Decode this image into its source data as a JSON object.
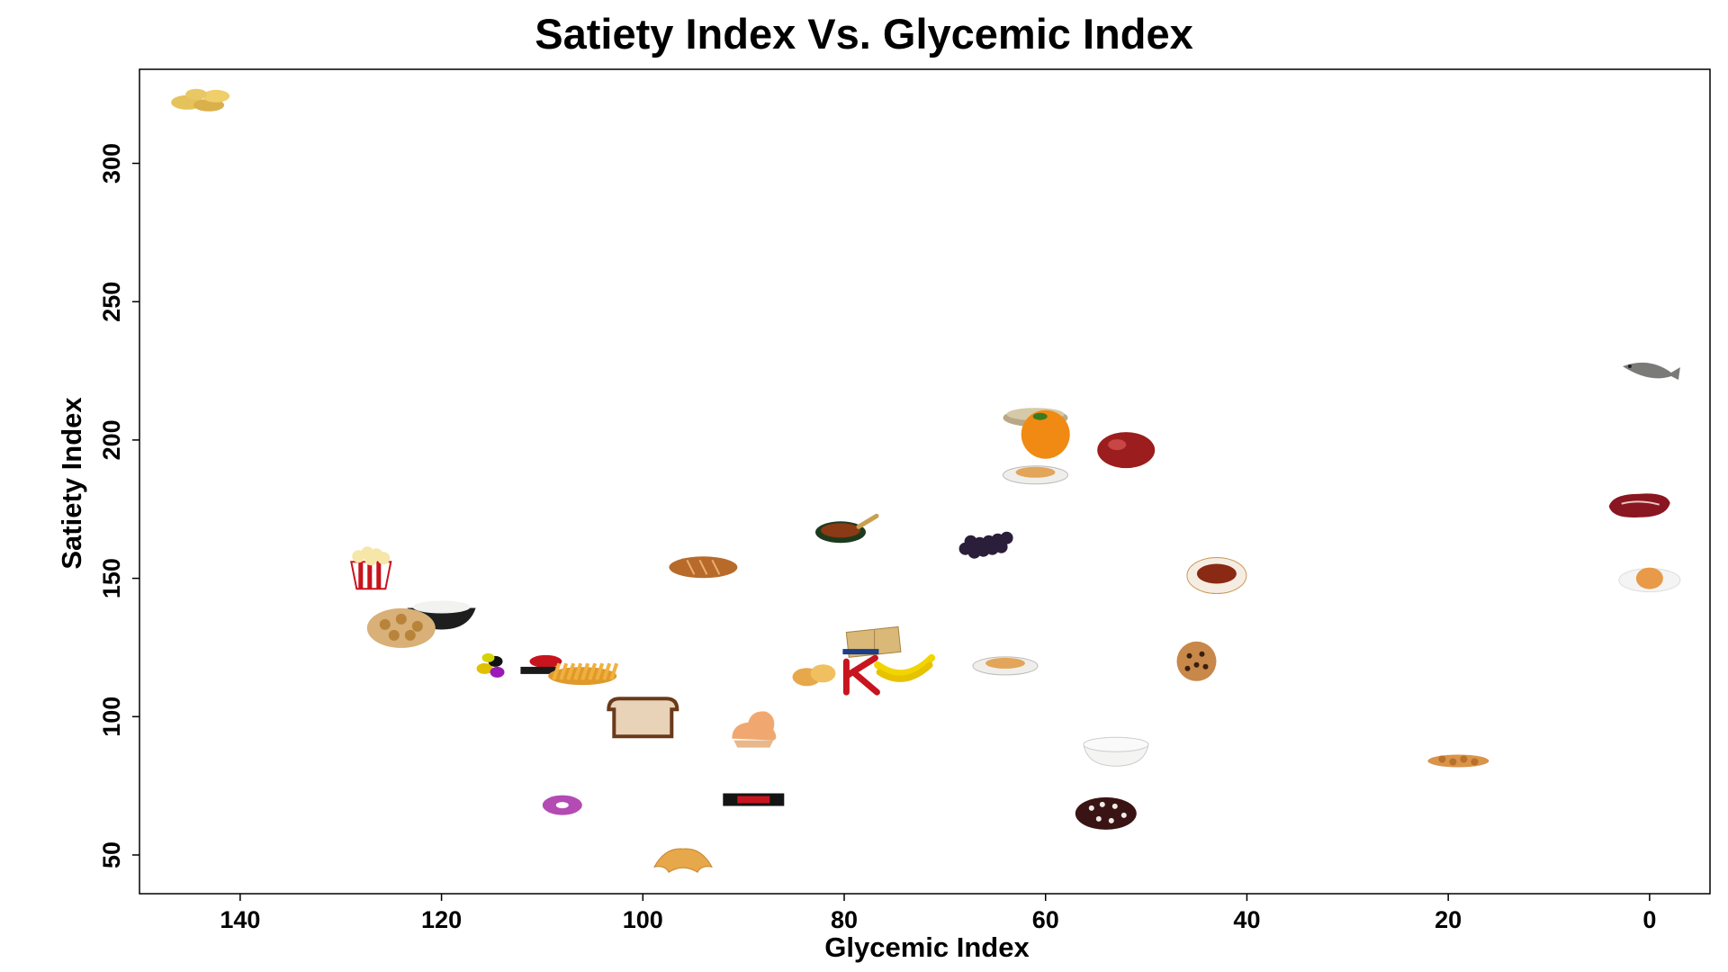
{
  "chart_data": {
    "type": "scatter",
    "title": "Satiety Index Vs. Glycemic Index",
    "xlabel": "Glycemic Index",
    "ylabel": "Satiety Index",
    "xlim": [
      150,
      -6
    ],
    "ylim": [
      36,
      334
    ],
    "x_reversed": true,
    "x_ticks": [
      140,
      120,
      100,
      80,
      60,
      40,
      20,
      0
    ],
    "y_ticks": [
      50,
      100,
      150,
      200,
      250,
      300
    ],
    "grid": false,
    "legend": "none",
    "marker_note": "points are drawn as food pictures",
    "points": [
      {
        "food": "potatoes",
        "icon": "potato-icon",
        "x": 144,
        "y": 323
      },
      {
        "food": "fish",
        "icon": "fish-icon",
        "x": 0,
        "y": 225
      },
      {
        "food": "oatmeal",
        "icon": "oatmeal-bowl-icon",
        "x": 61,
        "y": 209
      },
      {
        "food": "oranges",
        "icon": "orange-icon",
        "x": 60,
        "y": 202
      },
      {
        "food": "apples",
        "icon": "apple-icon",
        "x": 52,
        "y": 197
      },
      {
        "food": "brown pasta",
        "icon": "pasta-plate-icon",
        "x": 61,
        "y": 188
      },
      {
        "food": "beef steak",
        "icon": "steak-icon",
        "x": 1,
        "y": 176
      },
      {
        "food": "baked beans",
        "icon": "baked-beans-pan-icon",
        "x": 80,
        "y": 168
      },
      {
        "food": "grapes",
        "icon": "grapes-icon",
        "x": 66,
        "y": 162
      },
      {
        "food": "popcorn",
        "icon": "popcorn-icon",
        "x": 127,
        "y": 154
      },
      {
        "food": "brown bread",
        "icon": "bread-loaf-icon",
        "x": 94,
        "y": 154
      },
      {
        "food": "All-Bran",
        "icon": "all-bran-icon",
        "x": 43,
        "y": 151
      },
      {
        "food": "eggs",
        "icon": "egg-icon",
        "x": 0,
        "y": 150
      },
      {
        "food": "white rice",
        "icon": "rice-bowl-icon",
        "x": 120,
        "y": 138
      },
      {
        "food": "crackers",
        "icon": "crackers-icon",
        "x": 77,
        "y": 127
      },
      {
        "food": "Honeysmacks",
        "icon": "cereal-icon",
        "x": 124,
        "y": 132
      },
      {
        "food": "jelly beans",
        "icon": "jelly-beans-icon",
        "x": 115,
        "y": 118
      },
      {
        "food": "Cornflakes",
        "icon": "corn-flakes-icon",
        "x": 110,
        "y": 118
      },
      {
        "food": "french fries",
        "icon": "french-fries-icon",
        "x": 106,
        "y": 116
      },
      {
        "food": "potato chips",
        "icon": "potato-chips-icon",
        "x": 83,
        "y": 115
      },
      {
        "food": "Special K",
        "icon": "special-k-icon",
        "x": 78,
        "y": 116
      },
      {
        "food": "bananas",
        "icon": "banana-icon",
        "x": 74,
        "y": 118
      },
      {
        "food": "white pasta",
        "icon": "pasta-plate-icon",
        "x": 64,
        "y": 119
      },
      {
        "food": "cookies",
        "icon": "cookie-icon",
        "x": 45,
        "y": 120
      },
      {
        "food": "white bread",
        "icon": "bread-slice-icon",
        "x": 100,
        "y": 100
      },
      {
        "food": "ice cream",
        "icon": "ice-cream-icon",
        "x": 89,
        "y": 96
      },
      {
        "food": "yogurt",
        "icon": "yogurt-icon",
        "x": 53,
        "y": 88
      },
      {
        "food": "peanuts",
        "icon": "peanuts-icon",
        "x": 19,
        "y": 84
      },
      {
        "food": "doughnuts",
        "icon": "doughnut-icon",
        "x": 108,
        "y": 68
      },
      {
        "food": "Mars bar",
        "icon": "mars-bar-icon",
        "x": 89,
        "y": 70
      },
      {
        "food": "cake",
        "icon": "cake-icon",
        "x": 54,
        "y": 65
      },
      {
        "food": "croissant",
        "icon": "croissant-icon",
        "x": 96,
        "y": 47
      }
    ]
  },
  "colors": {
    "axis": "#000000",
    "background": "#ffffff"
  }
}
